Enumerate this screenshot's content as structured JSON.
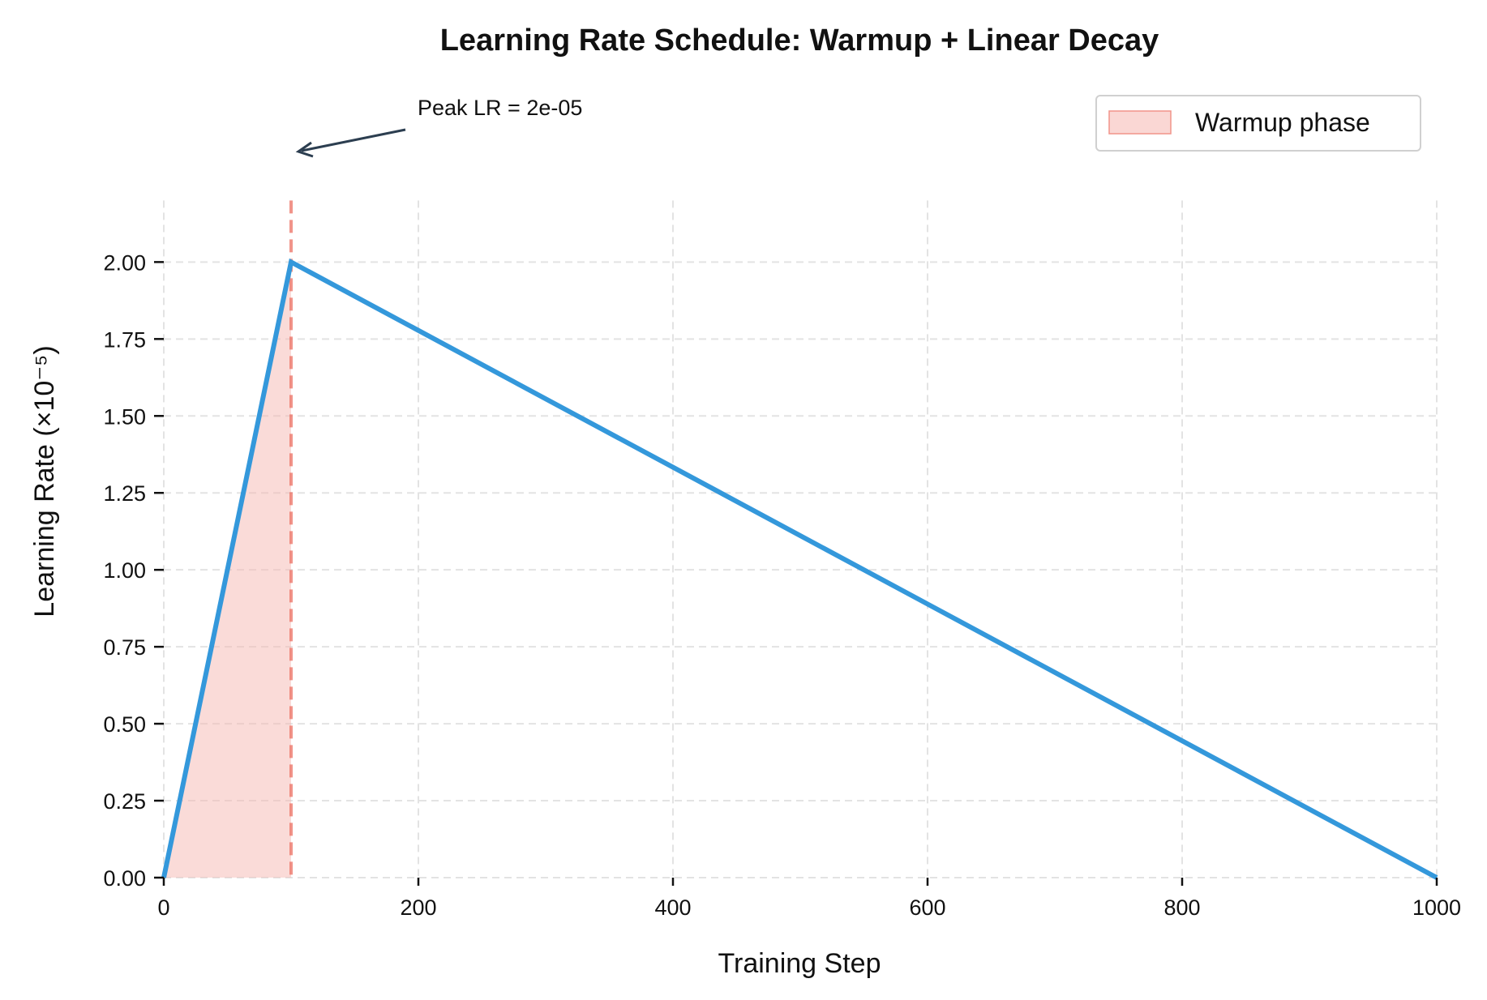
{
  "chart_data": {
    "type": "line",
    "title": "Learning Rate Schedule: Warmup + Linear Decay",
    "xlabel": "Training Step",
    "ylabel": "Learning Rate (×10⁻⁵)",
    "xlim": [
      0,
      1000
    ],
    "ylim": [
      0,
      2.2
    ],
    "xticks": [
      "0",
      "200",
      "400",
      "600",
      "800",
      "1000"
    ],
    "yticks": [
      "0.00",
      "0.25",
      "0.50",
      "0.75",
      "1.00",
      "1.25",
      "1.50",
      "1.75",
      "2.00"
    ],
    "grid": true,
    "series": [
      {
        "x": [
          0,
          100,
          1000
        ],
        "y": [
          0,
          2.0,
          0
        ],
        "color": "#3498db"
      }
    ],
    "warmup_region": {
      "x": [
        0,
        100
      ],
      "label": "Warmup phase",
      "color": "#f5b7b1"
    },
    "vline": {
      "x": 100,
      "color": "#ec7063",
      "style": "dashed"
    },
    "annotation": {
      "text": "Peak LR = 2e-05",
      "x": 100,
      "y": 2.0,
      "color": "#2c3e50"
    },
    "legend": {
      "placement": "top-right",
      "entries": [
        "Warmup phase"
      ]
    }
  }
}
